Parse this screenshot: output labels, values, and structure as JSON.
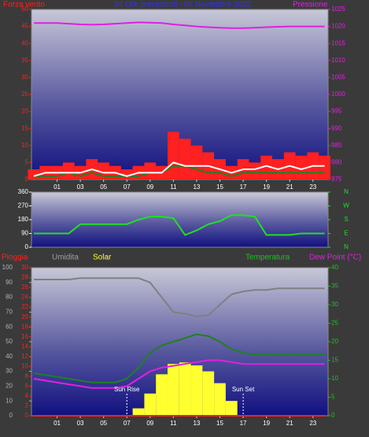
{
  "chart_data": [
    {
      "type": "line",
      "title": "24 Ore precedenti - 08 Novembre 2022",
      "ylabel": "Forza vento",
      "y2label": "Pressione",
      "ycolor": "#ff2020",
      "y2color": "#e020e0",
      "x": [
        -1,
        0,
        1,
        2,
        3,
        4,
        5,
        6,
        7,
        8,
        9,
        10,
        11,
        12,
        13,
        14,
        15,
        16,
        17,
        18,
        19,
        20,
        21,
        22,
        23,
        24
      ],
      "xlim": [
        -1.2,
        24.3
      ],
      "xticks": [
        {
          "value": 1,
          "label": "01"
        },
        {
          "value": 3,
          "label": "03"
        },
        {
          "value": 5,
          "label": "05"
        },
        {
          "value": 7,
          "label": "07"
        },
        {
          "value": 9,
          "label": "09"
        },
        {
          "value": 11,
          "label": "11"
        },
        {
          "value": 13,
          "label": "13"
        },
        {
          "value": 15,
          "label": "15"
        },
        {
          "value": 17,
          "label": "17"
        },
        {
          "value": 19,
          "label": "19"
        },
        {
          "value": 21,
          "label": "21"
        },
        {
          "value": 23,
          "label": "23"
        }
      ],
      "ylim": [
        0,
        50
      ],
      "yticks": [
        0,
        5,
        10,
        15,
        20,
        25,
        30,
        35,
        40,
        45,
        50
      ],
      "y2lim": [
        975,
        1025
      ],
      "y2ticks": [
        975,
        980,
        985,
        990,
        995,
        1000,
        1005,
        1010,
        1015,
        1020,
        1025
      ],
      "series": [
        {
          "color": "#ff2020",
          "area": true,
          "values": [
            3,
            4,
            4,
            5,
            4,
            6,
            5,
            4,
            3,
            4,
            5,
            4,
            14,
            12,
            10,
            8,
            6,
            4,
            6,
            5,
            7,
            6,
            8,
            7,
            8,
            7
          ]
        },
        {
          "color": "#208020",
          "values": [
            1,
            1,
            1,
            2,
            1,
            2,
            1,
            1,
            1,
            1,
            2,
            2,
            4,
            4,
            3,
            2,
            2,
            1,
            2,
            2,
            2,
            2,
            2,
            2,
            2,
            2
          ]
        },
        {
          "color": "#ffffff",
          "values": [
            1,
            2,
            2,
            2,
            2,
            3,
            2,
            2,
            1,
            2,
            2,
            2,
            5,
            4,
            4,
            4,
            3,
            2,
            3,
            3,
            4,
            3,
            4,
            3,
            4,
            4
          ]
        },
        {
          "color": "#e020e0",
          "axis": "y2",
          "values": [
            1021,
            1021,
            1021,
            1020.8,
            1020.6,
            1020.5,
            1020.6,
            1020.8,
            1021,
            1021.2,
            1021.1,
            1021,
            1020.6,
            1020.3,
            1020,
            1019.8,
            1019.6,
            1019.5,
            1019.5,
            1019.6,
            1019.8,
            1019.9,
            1020,
            1020,
            1020,
            1020
          ]
        }
      ]
    },
    {
      "type": "line",
      "ycolor": "#ffffff",
      "y2color": "#20e020",
      "x": [
        -1,
        0,
        1,
        2,
        3,
        4,
        5,
        6,
        7,
        8,
        9,
        10,
        11,
        12,
        13,
        14,
        15,
        16,
        17,
        18,
        19,
        20,
        21,
        22,
        23,
        24
      ],
      "xlim": [
        -1.2,
        24.3
      ],
      "ylim": [
        0,
        360
      ],
      "yticks": [
        0,
        90,
        180,
        270,
        360
      ],
      "y2lim": [
        0,
        360
      ],
      "y2ticks": [
        {
          "value": 360,
          "label": "N"
        },
        {
          "value": 270,
          "label": "W"
        },
        {
          "value": 180,
          "label": "S"
        },
        {
          "value": 90,
          "label": "E"
        },
        {
          "value": 0,
          "label": "N"
        }
      ],
      "series": [
        {
          "color": "#20e020",
          "values": [
            90,
            90,
            90,
            90,
            150,
            150,
            150,
            150,
            150,
            180,
            200,
            200,
            190,
            80,
            110,
            150,
            170,
            210,
            210,
            200,
            80,
            80,
            80,
            90,
            90,
            90
          ]
        }
      ]
    },
    {
      "type": "line",
      "ycolor": "#b0b0b0",
      "y2color": "#20c020",
      "y3color": "#ff2020",
      "x": [
        -1,
        0,
        1,
        2,
        3,
        4,
        5,
        6,
        7,
        8,
        9,
        10,
        11,
        12,
        13,
        14,
        15,
        16,
        17,
        18,
        19,
        20,
        21,
        22,
        23,
        24
      ],
      "xlim": [
        -1.2,
        24.3
      ],
      "xticks": [
        {
          "value": 1,
          "label": "01"
        },
        {
          "value": 3,
          "label": "03"
        },
        {
          "value": 5,
          "label": "05"
        },
        {
          "value": 7,
          "label": "07"
        },
        {
          "value": 9,
          "label": "09"
        },
        {
          "value": 11,
          "label": "11"
        },
        {
          "value": 13,
          "label": "13"
        },
        {
          "value": 15,
          "label": "15"
        },
        {
          "value": 17,
          "label": "17"
        },
        {
          "value": 19,
          "label": "19"
        },
        {
          "value": 21,
          "label": "21"
        },
        {
          "value": 23,
          "label": "23"
        }
      ],
      "ylim": [
        0,
        100
      ],
      "yticks": [
        0,
        10,
        20,
        30,
        40,
        50,
        60,
        70,
        80,
        90,
        100
      ],
      "y3lim": [
        0,
        30
      ],
      "y3ticks": [
        0,
        2,
        4,
        6,
        8,
        10,
        12,
        14,
        16,
        18,
        20,
        22,
        24,
        26,
        28,
        30
      ],
      "y2lim": [
        0,
        40
      ],
      "y2ticks": [
        0,
        5,
        10,
        15,
        20,
        25,
        30,
        35,
        40
      ],
      "series": [
        {
          "name": "Solar",
          "color": "#ffff30",
          "area": true,
          "values": [
            0,
            0,
            0,
            0,
            0,
            0,
            0,
            0,
            0,
            5,
            15,
            28,
            35,
            36,
            34,
            30,
            22,
            10,
            0,
            0,
            0,
            0,
            0,
            0,
            0,
            0
          ]
        },
        {
          "name": "Umidita",
          "color": "#808080",
          "values": [
            92,
            92,
            92,
            92,
            93,
            93,
            93,
            93,
            93,
            93,
            90,
            80,
            70,
            69,
            67,
            68,
            75,
            82,
            84,
            85,
            85,
            86,
            86,
            86,
            86,
            86
          ]
        },
        {
          "name": "Temperatura",
          "color": "#208020",
          "axis": "y2",
          "values": [
            11.5,
            11,
            10.5,
            10,
            9.5,
            9,
            9,
            9,
            10,
            13,
            17,
            19,
            20,
            21,
            22,
            21.5,
            20,
            18,
            17,
            16.5,
            16.5,
            16.5,
            16.5,
            16.5,
            16.5,
            16.5
          ]
        },
        {
          "name": "Dew Point (°C)",
          "color": "#e020e0",
          "axis": "y2",
          "values": [
            10,
            9.5,
            9,
            8.5,
            8,
            7.5,
            7.5,
            7.5,
            8,
            10,
            12,
            13,
            13.5,
            14,
            14.5,
            15,
            15,
            14.5,
            14,
            14,
            14,
            14,
            14,
            14,
            14,
            14
          ]
        },
        {
          "name": "Pioggia",
          "color": "#ff2020",
          "axis": "y3",
          "values": [
            0,
            0,
            0,
            0,
            0,
            0,
            0,
            0,
            0,
            0,
            0,
            0,
            0,
            0,
            0,
            0,
            0,
            0,
            0,
            0,
            0,
            0,
            0,
            0,
            0,
            0
          ]
        }
      ],
      "annotations": [
        {
          "text": "Sun Rise",
          "x": 7
        },
        {
          "text": "Sun Set",
          "x": 17
        }
      ]
    }
  ]
}
